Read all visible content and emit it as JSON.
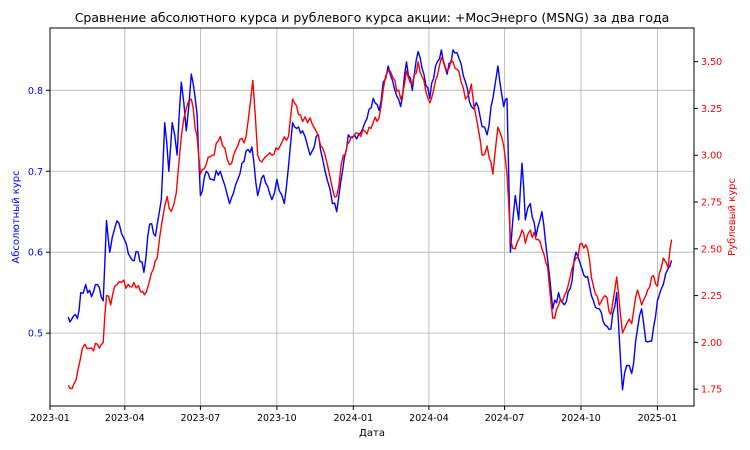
{
  "chart_data": {
    "type": "line",
    "title": "Сравнение абсолютного курса и рублевого курса акции: +МосЭнерго (MSNG) за два года",
    "xlabel": "Дата",
    "ylabel_left": "Абсолютный курс",
    "ylabel_right": "Рублевый курс",
    "grid": true,
    "x_ticks": [
      "2023-01",
      "2023-04",
      "2023-07",
      "2023-10",
      "2024-01",
      "2024-04",
      "2024-07",
      "2024-10",
      "2025-01"
    ],
    "x_range": [
      "2023-01-01",
      "2025-02-14"
    ],
    "y_left": {
      "range": [
        0.41,
        0.877
      ],
      "ticks": [
        "0.5",
        "0.6",
        "0.7",
        "0.8"
      ],
      "color": "#0000ff"
    },
    "y_right": {
      "range": [
        1.66,
        3.68
      ],
      "ticks": [
        "1.75",
        "2.00",
        "2.25",
        "2.50",
        "2.75",
        "3.00",
        "3.25",
        "3.50"
      ],
      "color": "#ff0000"
    },
    "series": [
      {
        "axis": "left",
        "color": "#0000ff",
        "points": [
          [
            "2023-01-23",
            0.52
          ],
          [
            "2023-01-27",
            0.517
          ],
          [
            "2023-02-03",
            0.518
          ],
          [
            "2023-02-07",
            0.55
          ],
          [
            "2023-02-13",
            0.56
          ],
          [
            "2023-02-20",
            0.545
          ],
          [
            "2023-02-27",
            0.56
          ],
          [
            "2023-03-06",
            0.54
          ],
          [
            "2023-03-10",
            0.639
          ],
          [
            "2023-03-14",
            0.6
          ],
          [
            "2023-03-20",
            0.63
          ],
          [
            "2023-03-25",
            0.636
          ],
          [
            "2023-04-03",
            0.61
          ],
          [
            "2023-04-10",
            0.59
          ],
          [
            "2023-04-17",
            0.6
          ],
          [
            "2023-04-24",
            0.575
          ],
          [
            "2023-05-01",
            0.635
          ],
          [
            "2023-05-08",
            0.62
          ],
          [
            "2023-05-15",
            0.665
          ],
          [
            "2023-05-19",
            0.76
          ],
          [
            "2023-05-24",
            0.7
          ],
          [
            "2023-05-28",
            0.76
          ],
          [
            "2023-06-03",
            0.72
          ],
          [
            "2023-06-08",
            0.81
          ],
          [
            "2023-06-14",
            0.75
          ],
          [
            "2023-06-20",
            0.82
          ],
          [
            "2023-06-27",
            0.77
          ],
          [
            "2023-07-01",
            0.67
          ],
          [
            "2023-07-08",
            0.7
          ],
          [
            "2023-07-15",
            0.69
          ],
          [
            "2023-07-25",
            0.7
          ],
          [
            "2023-08-05",
            0.66
          ],
          [
            "2023-08-15",
            0.69
          ],
          [
            "2023-08-25",
            0.725
          ],
          [
            "2023-09-01",
            0.73
          ],
          [
            "2023-09-08",
            0.67
          ],
          [
            "2023-09-15",
            0.695
          ],
          [
            "2023-09-25",
            0.665
          ],
          [
            "2023-10-01",
            0.69
          ],
          [
            "2023-10-10",
            0.66
          ],
          [
            "2023-10-20",
            0.76
          ],
          [
            "2023-11-01",
            0.75
          ],
          [
            "2023-11-10",
            0.72
          ],
          [
            "2023-11-20",
            0.745
          ],
          [
            "2023-11-28",
            0.7
          ],
          [
            "2023-12-07",
            0.66
          ],
          [
            "2023-12-12",
            0.65
          ],
          [
            "2023-12-19",
            0.7
          ],
          [
            "2023-12-26",
            0.745
          ],
          [
            "2024-01-05",
            0.74
          ],
          [
            "2024-01-15",
            0.76
          ],
          [
            "2024-01-25",
            0.79
          ],
          [
            "2024-02-01",
            0.775
          ],
          [
            "2024-02-06",
            0.81
          ],
          [
            "2024-02-12",
            0.83
          ],
          [
            "2024-02-20",
            0.8
          ],
          [
            "2024-02-27",
            0.78
          ],
          [
            "2024-03-05",
            0.835
          ],
          [
            "2024-03-12",
            0.8
          ],
          [
            "2024-03-19",
            0.848
          ],
          [
            "2024-03-26",
            0.82
          ],
          [
            "2024-04-02",
            0.79
          ],
          [
            "2024-04-09",
            0.83
          ],
          [
            "2024-04-16",
            0.85
          ],
          [
            "2024-04-23",
            0.82
          ],
          [
            "2024-04-30",
            0.85
          ],
          [
            "2024-05-07",
            0.84
          ],
          [
            "2024-05-15",
            0.81
          ],
          [
            "2024-05-22",
            0.78
          ],
          [
            "2024-05-28",
            0.785
          ],
          [
            "2024-06-04",
            0.755
          ],
          [
            "2024-06-10",
            0.745
          ],
          [
            "2024-06-17",
            0.79
          ],
          [
            "2024-06-23",
            0.83
          ],
          [
            "2024-06-30",
            0.78
          ],
          [
            "2024-07-04",
            0.79
          ],
          [
            "2024-07-08",
            0.6
          ],
          [
            "2024-07-14",
            0.67
          ],
          [
            "2024-07-18",
            0.64
          ],
          [
            "2024-07-22",
            0.71
          ],
          [
            "2024-07-26",
            0.64
          ],
          [
            "2024-08-01",
            0.66
          ],
          [
            "2024-08-08",
            0.62
          ],
          [
            "2024-08-15",
            0.65
          ],
          [
            "2024-08-22",
            0.59
          ],
          [
            "2024-08-28",
            0.53
          ],
          [
            "2024-09-04",
            0.55
          ],
          [
            "2024-09-11",
            0.535
          ],
          [
            "2024-09-18",
            0.555
          ],
          [
            "2024-09-25",
            0.6
          ],
          [
            "2024-10-02",
            0.58
          ],
          [
            "2024-10-09",
            0.57
          ],
          [
            "2024-10-16",
            0.54
          ],
          [
            "2024-10-23",
            0.53
          ],
          [
            "2024-10-30",
            0.51
          ],
          [
            "2024-11-06",
            0.505
          ],
          [
            "2024-11-13",
            0.55
          ],
          [
            "2024-11-20",
            0.43
          ],
          [
            "2024-11-25",
            0.46
          ],
          [
            "2024-12-01",
            0.45
          ],
          [
            "2024-12-08",
            0.505
          ],
          [
            "2024-12-13",
            0.53
          ],
          [
            "2024-12-18",
            0.49
          ],
          [
            "2024-12-25",
            0.49
          ],
          [
            "2025-01-01",
            0.54
          ],
          [
            "2025-01-08",
            0.56
          ],
          [
            "2025-01-14",
            0.58
          ],
          [
            "2025-01-18",
            0.59
          ]
        ]
      },
      {
        "axis": "right",
        "color": "#ff0000",
        "points": [
          [
            "2023-01-23",
            1.77
          ],
          [
            "2023-01-30",
            1.78
          ],
          [
            "2023-02-06",
            1.9
          ],
          [
            "2023-02-12",
            1.99
          ],
          [
            "2023-02-20",
            1.97
          ],
          [
            "2023-02-27",
            1.99
          ],
          [
            "2023-03-06",
            2.0
          ],
          [
            "2023-03-10",
            2.25
          ],
          [
            "2023-03-15",
            2.2
          ],
          [
            "2023-03-20",
            2.3
          ],
          [
            "2023-03-28",
            2.32
          ],
          [
            "2023-04-05",
            2.31
          ],
          [
            "2023-04-12",
            2.32
          ],
          [
            "2023-04-20",
            2.27
          ],
          [
            "2023-04-27",
            2.27
          ],
          [
            "2023-05-03",
            2.37
          ],
          [
            "2023-05-10",
            2.45
          ],
          [
            "2023-05-16",
            2.65
          ],
          [
            "2023-05-22",
            2.78
          ],
          [
            "2023-05-27",
            2.7
          ],
          [
            "2023-06-02",
            2.8
          ],
          [
            "2023-06-08",
            3.1
          ],
          [
            "2023-06-14",
            3.25
          ],
          [
            "2023-06-20",
            3.3
          ],
          [
            "2023-06-27",
            3.1
          ],
          [
            "2023-07-01",
            2.9
          ],
          [
            "2023-07-08",
            2.95
          ],
          [
            "2023-07-15",
            3.0
          ],
          [
            "2023-07-25",
            3.1
          ],
          [
            "2023-08-05",
            2.95
          ],
          [
            "2023-08-15",
            3.05
          ],
          [
            "2023-08-25",
            3.1
          ],
          [
            "2023-09-02",
            3.4
          ],
          [
            "2023-09-08",
            3.0
          ],
          [
            "2023-09-15",
            2.98
          ],
          [
            "2023-09-25",
            3.0
          ],
          [
            "2023-10-05",
            3.05
          ],
          [
            "2023-10-15",
            3.1
          ],
          [
            "2023-10-20",
            3.3
          ],
          [
            "2023-11-01",
            3.18
          ],
          [
            "2023-11-10",
            3.2
          ],
          [
            "2023-11-20",
            3.1
          ],
          [
            "2023-11-28",
            3.0
          ],
          [
            "2023-12-07",
            2.82
          ],
          [
            "2023-12-12",
            2.78
          ],
          [
            "2023-12-20",
            3.0
          ],
          [
            "2024-01-01",
            3.1
          ],
          [
            "2024-01-10",
            3.1
          ],
          [
            "2024-01-20",
            3.15
          ],
          [
            "2024-02-01",
            3.2
          ],
          [
            "2024-02-06",
            3.35
          ],
          [
            "2024-02-12",
            3.45
          ],
          [
            "2024-02-20",
            3.4
          ],
          [
            "2024-02-27",
            3.3
          ],
          [
            "2024-03-05",
            3.45
          ],
          [
            "2024-03-12",
            3.38
          ],
          [
            "2024-03-19",
            3.5
          ],
          [
            "2024-03-26",
            3.4
          ],
          [
            "2024-04-02",
            3.28
          ],
          [
            "2024-04-09",
            3.4
          ],
          [
            "2024-04-16",
            3.52
          ],
          [
            "2024-04-23",
            3.45
          ],
          [
            "2024-04-30",
            3.5
          ],
          [
            "2024-05-07",
            3.45
          ],
          [
            "2024-05-15",
            3.3
          ],
          [
            "2024-05-22",
            3.38
          ],
          [
            "2024-05-28",
            3.2
          ],
          [
            "2024-06-04",
            3.0
          ],
          [
            "2024-06-10",
            3.05
          ],
          [
            "2024-06-17",
            2.9
          ],
          [
            "2024-06-23",
            3.15
          ],
          [
            "2024-06-30",
            3.05
          ],
          [
            "2024-07-04",
            2.9
          ],
          [
            "2024-07-08",
            2.55
          ],
          [
            "2024-07-14",
            2.5
          ],
          [
            "2024-07-18",
            2.55
          ],
          [
            "2024-07-22",
            2.6
          ],
          [
            "2024-07-26",
            2.53
          ],
          [
            "2024-08-01",
            2.6
          ],
          [
            "2024-08-08",
            2.55
          ],
          [
            "2024-08-15",
            2.5
          ],
          [
            "2024-08-22",
            2.4
          ],
          [
            "2024-08-28",
            2.13
          ],
          [
            "2024-09-04",
            2.2
          ],
          [
            "2024-09-11",
            2.25
          ],
          [
            "2024-09-18",
            2.35
          ],
          [
            "2024-09-25",
            2.45
          ],
          [
            "2024-10-02",
            2.53
          ],
          [
            "2024-10-09",
            2.5
          ],
          [
            "2024-10-16",
            2.3
          ],
          [
            "2024-10-23",
            2.2
          ],
          [
            "2024-10-30",
            2.25
          ],
          [
            "2024-11-06",
            2.15
          ],
          [
            "2024-11-13",
            2.35
          ],
          [
            "2024-11-20",
            2.05
          ],
          [
            "2024-11-25",
            2.1
          ],
          [
            "2024-12-01",
            2.1
          ],
          [
            "2024-12-08",
            2.28
          ],
          [
            "2024-12-13",
            2.2
          ],
          [
            "2024-12-18",
            2.25
          ],
          [
            "2024-12-25",
            2.35
          ],
          [
            "2025-01-01",
            2.3
          ],
          [
            "2025-01-08",
            2.45
          ],
          [
            "2025-01-14",
            2.4
          ],
          [
            "2025-01-18",
            2.55
          ]
        ]
      }
    ]
  }
}
